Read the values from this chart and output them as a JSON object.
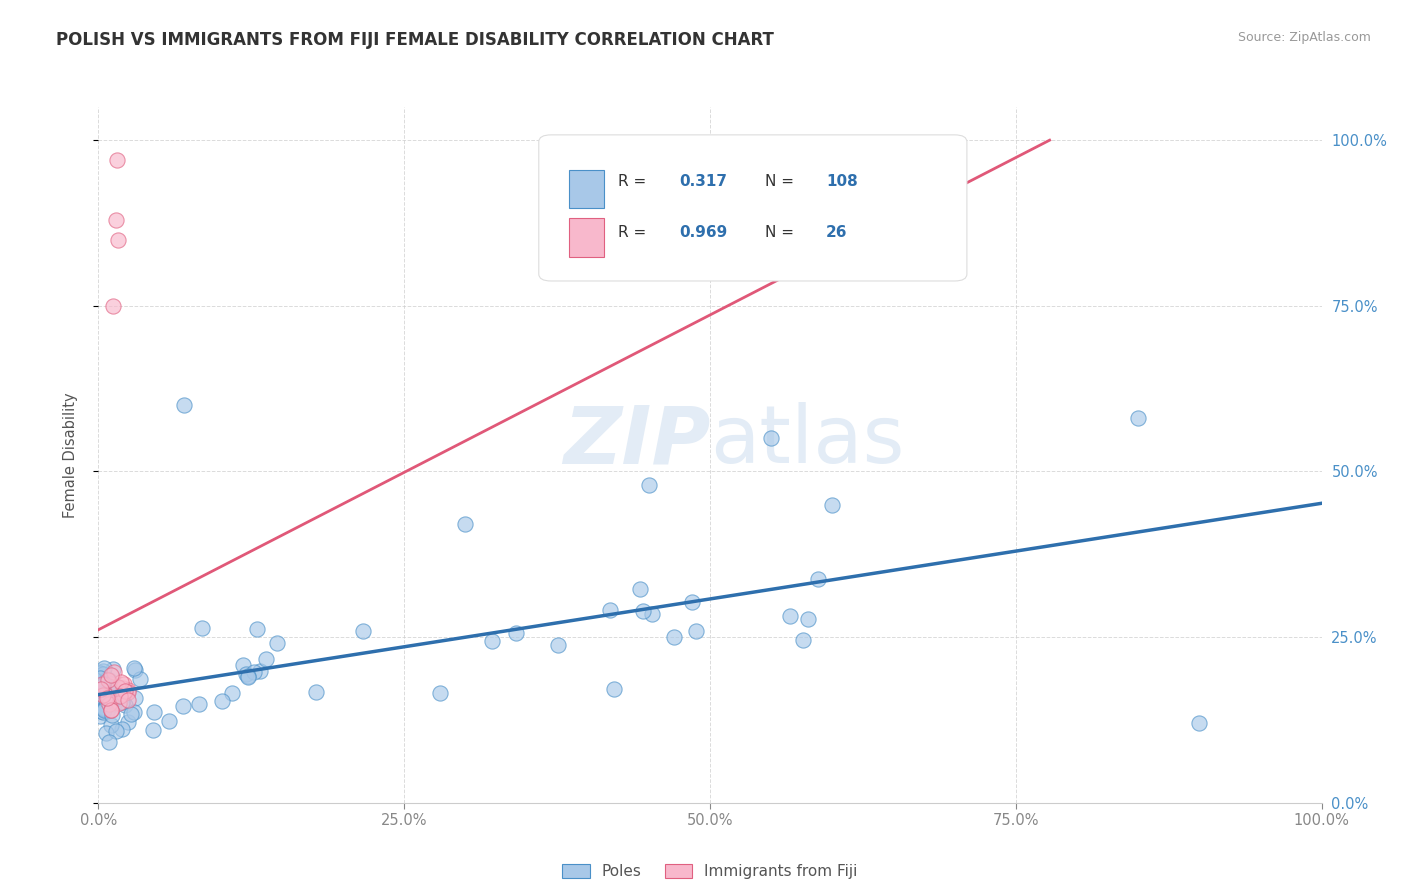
{
  "title": "POLISH VS IMMIGRANTS FROM FIJI FEMALE DISABILITY CORRELATION CHART",
  "source": "Source: ZipAtlas.com",
  "ylabel": "Female Disability",
  "watermark": "ZIPatlas",
  "poles_R": "0.317",
  "poles_N": "108",
  "fiji_R": "0.969",
  "fiji_N": "26",
  "poles_color": "#a8c8e8",
  "poles_edge_color": "#4a90c8",
  "poles_line_color": "#2e6fad",
  "fiji_color": "#f8b8cc",
  "fiji_edge_color": "#e06080",
  "fiji_line_color": "#e05878",
  "title_color": "#333333",
  "axis_label_color": "#555555",
  "tick_label_color": "#888888",
  "right_axis_color": "#4a90c8",
  "grid_color": "#cccccc",
  "background_color": "#ffffff",
  "legend_text_color": "#2e6fad"
}
